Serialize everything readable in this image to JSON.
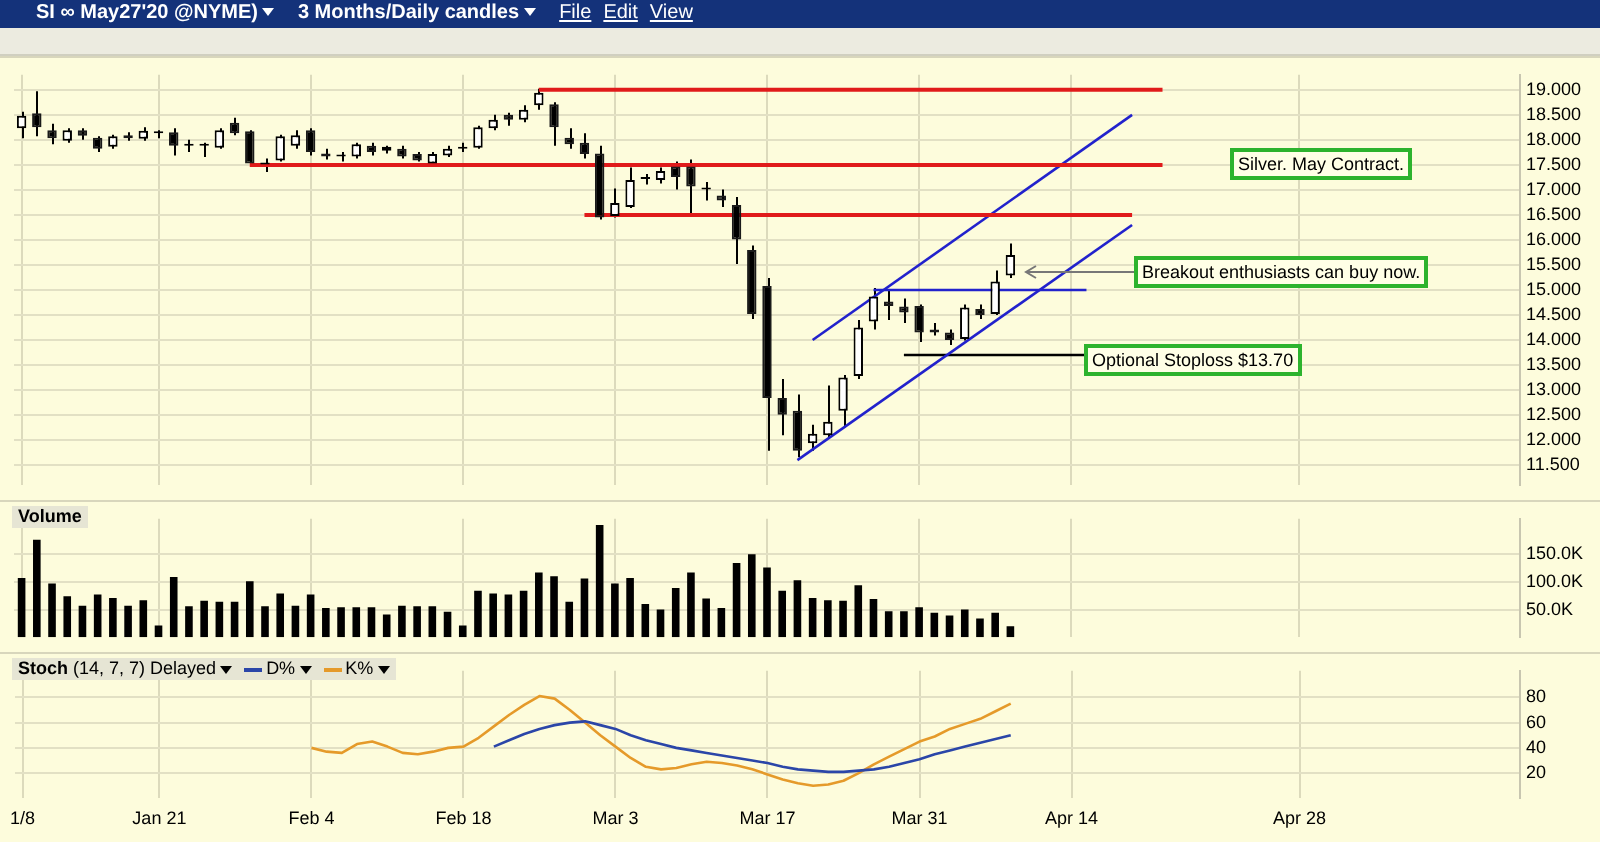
{
  "chart_data": [
    {
      "type": "candlestick",
      "title": "SI ∞ May27'20 @NYME)",
      "subtitle": "3 Months/Daily candles",
      "categories": [
        null,
        null,
        null,
        null,
        null,
        null,
        null,
        null,
        null,
        null,
        null,
        null,
        null,
        null,
        null,
        null,
        null,
        null,
        null,
        null,
        null,
        null,
        null,
        null,
        null,
        null,
        null,
        null,
        null,
        null,
        null,
        null,
        null,
        null,
        null,
        null,
        null,
        null,
        null,
        null,
        null,
        null,
        null,
        null,
        null,
        null,
        null,
        null,
        null,
        null,
        null,
        null,
        null,
        null,
        null,
        null,
        null,
        null,
        null,
        null,
        null,
        null,
        null,
        null,
        null,
        null,
        null,
        null,
        null,
        null,
        null,
        null,
        null,
        null,
        null,
        null,
        null,
        null,
        null,
        null,
        null,
        null,
        null,
        null,
        null,
        null,
        null,
        null,
        null,
        null,
        null,
        null,
        null,
        null,
        null,
        null,
        null,
        null,
        null
      ],
      "ohlc": [
        [
          18.23,
          18.56,
          18.03,
          18.48
        ],
        [
          18.53,
          18.97,
          18.07,
          18.25
        ],
        [
          18.19,
          18.32,
          17.91,
          18.03
        ],
        [
          17.98,
          18.23,
          17.94,
          18.19
        ],
        [
          18.19,
          18.23,
          18.0,
          18.08
        ],
        [
          18.04,
          18.07,
          17.76,
          17.82
        ],
        [
          17.86,
          18.1,
          17.82,
          18.07
        ],
        [
          18.09,
          18.15,
          17.98,
          18.03
        ],
        [
          18.02,
          18.25,
          17.98,
          18.18
        ],
        [
          18.13,
          18.19,
          18.03,
          18.13
        ],
        [
          18.15,
          18.23,
          17.69,
          17.88
        ],
        [
          17.88,
          18.0,
          17.76,
          17.88
        ],
        [
          17.88,
          17.94,
          17.66,
          17.88
        ],
        [
          17.84,
          18.23,
          17.82,
          18.19
        ],
        [
          18.34,
          18.44,
          18.09,
          18.13
        ],
        [
          18.17,
          18.19,
          17.51,
          17.53
        ],
        [
          17.51,
          17.63,
          17.36,
          17.51
        ],
        [
          17.59,
          18.1,
          17.57,
          18.07
        ],
        [
          17.88,
          18.19,
          17.82,
          18.09
        ],
        [
          18.19,
          18.23,
          17.69,
          17.76
        ],
        [
          17.73,
          17.82,
          17.61,
          17.67
        ],
        [
          17.67,
          17.76,
          17.57,
          17.67
        ],
        [
          17.67,
          17.94,
          17.63,
          17.91
        ],
        [
          17.88,
          17.94,
          17.69,
          17.76
        ],
        [
          17.78,
          17.88,
          17.73,
          17.86
        ],
        [
          17.82,
          17.88,
          17.63,
          17.67
        ],
        [
          17.72,
          17.76,
          17.57,
          17.59
        ],
        [
          17.53,
          17.76,
          17.51,
          17.72
        ],
        [
          17.69,
          17.88,
          17.66,
          17.82
        ],
        [
          17.82,
          17.94,
          17.76,
          17.82
        ],
        [
          17.84,
          18.28,
          17.82,
          18.25
        ],
        [
          18.23,
          18.5,
          18.19,
          18.4
        ],
        [
          18.5,
          18.54,
          18.28,
          18.4
        ],
        [
          18.4,
          18.69,
          18.35,
          18.6
        ],
        [
          18.69,
          19.02,
          18.6,
          18.94
        ],
        [
          18.71,
          18.75,
          17.88,
          18.25
        ],
        [
          18.04,
          18.23,
          17.82,
          17.91
        ],
        [
          17.94,
          18.13,
          17.63,
          17.72
        ],
        [
          17.73,
          17.88,
          16.41,
          16.45
        ],
        [
          16.48,
          17.03,
          16.45,
          16.74
        ],
        [
          16.66,
          17.45,
          16.64,
          17.2
        ],
        [
          17.22,
          17.32,
          17.11,
          17.22
        ],
        [
          17.2,
          17.45,
          17.13,
          17.38
        ],
        [
          17.47,
          17.57,
          17.01,
          17.26
        ],
        [
          17.47,
          17.61,
          16.54,
          17.07
        ],
        [
          17.01,
          17.16,
          16.79,
          17.01
        ],
        [
          16.89,
          17.01,
          16.66,
          16.79
        ],
        [
          16.7,
          16.86,
          15.52,
          16.01
        ],
        [
          15.8,
          15.89,
          14.42,
          14.52
        ],
        [
          15.08,
          15.24,
          11.79,
          12.84
        ],
        [
          12.84,
          13.22,
          12.1,
          12.51
        ],
        [
          12.59,
          12.91,
          11.66,
          11.79
        ],
        [
          11.94,
          12.31,
          11.79,
          12.13
        ],
        [
          12.1,
          13.09,
          12.03,
          12.37
        ],
        [
          12.59,
          13.3,
          12.26,
          13.25
        ],
        [
          13.28,
          14.4,
          13.22,
          14.25
        ],
        [
          14.37,
          15.04,
          14.21,
          14.87
        ],
        [
          14.77,
          15.02,
          14.4,
          14.68
        ],
        [
          14.67,
          14.83,
          14.34,
          14.55
        ],
        [
          14.68,
          14.71,
          13.96,
          14.15
        ],
        [
          14.21,
          14.34,
          14.09,
          14.15
        ],
        [
          14.15,
          14.21,
          13.9,
          14.0
        ],
        [
          14.02,
          14.71,
          13.99,
          14.65
        ],
        [
          14.62,
          14.71,
          14.42,
          14.5
        ],
        [
          14.52,
          15.39,
          14.5,
          15.17
        ],
        [
          15.29,
          15.93,
          15.24,
          15.7
        ],
        null,
        null,
        null,
        null,
        null,
        null,
        null,
        null,
        null,
        null,
        null,
        null,
        null,
        null,
        null,
        null,
        null,
        null,
        null,
        null,
        null,
        null,
        null,
        null,
        null,
        null,
        null,
        null,
        null,
        null,
        null,
        null,
        null
      ],
      "series": [
        {
          "type": "line",
          "color": "#e01b1b",
          "values": [
            null,
            null,
            null,
            null,
            null,
            null,
            null,
            null,
            null,
            null,
            null,
            null,
            null,
            null,
            null,
            null,
            null,
            null,
            null,
            null,
            null,
            null,
            null,
            null,
            null,
            null,
            null,
            null,
            null,
            null,
            null,
            null,
            null,
            null,
            19,
            null,
            null,
            null,
            null,
            null,
            null,
            null,
            null,
            null,
            null,
            null,
            null,
            null,
            null,
            null,
            null,
            null,
            null,
            null,
            null,
            null,
            null,
            null,
            null,
            null,
            null,
            null,
            null,
            null,
            null,
            null,
            null,
            null,
            null,
            null,
            null,
            null,
            null,
            null,
            null,
            19,
            null,
            null,
            null,
            null,
            null,
            null,
            null,
            null,
            null,
            null,
            null,
            null,
            null,
            null,
            null,
            null,
            null,
            null,
            null,
            null,
            null,
            null,
            null
          ]
        },
        {
          "type": "line",
          "color": "#e01b1b",
          "values": [
            null,
            null,
            null,
            null,
            null,
            null,
            null,
            null,
            null,
            null,
            null,
            null,
            null,
            null,
            null,
            17.5,
            null,
            null,
            null,
            null,
            null,
            null,
            null,
            null,
            null,
            null,
            null,
            null,
            null,
            null,
            null,
            null,
            null,
            null,
            null,
            null,
            null,
            null,
            null,
            null,
            null,
            null,
            null,
            null,
            null,
            null,
            null,
            null,
            null,
            null,
            null,
            null,
            null,
            null,
            null,
            null,
            null,
            null,
            null,
            null,
            null,
            null,
            null,
            null,
            null,
            null,
            null,
            null,
            null,
            null,
            null,
            null,
            null,
            null,
            null,
            17.5,
            null,
            null,
            null,
            null,
            null,
            null,
            null,
            null,
            null,
            null,
            null,
            null,
            null,
            null,
            null,
            null,
            null,
            null,
            null,
            null,
            null,
            null,
            null
          ]
        },
        {
          "type": "line",
          "color": "#e01b1b",
          "values": [
            null,
            null,
            null,
            null,
            null,
            null,
            null,
            null,
            null,
            null,
            null,
            null,
            null,
            null,
            null,
            null,
            null,
            null,
            null,
            null,
            null,
            null,
            null,
            null,
            null,
            null,
            null,
            null,
            null,
            null,
            null,
            null,
            null,
            null,
            null,
            null,
            null,
            16.5,
            null,
            null,
            null,
            null,
            null,
            null,
            null,
            null,
            null,
            null,
            null,
            null,
            null,
            null,
            null,
            null,
            null,
            null,
            null,
            null,
            null,
            null,
            null,
            null,
            null,
            null,
            null,
            null,
            null,
            null,
            null,
            null,
            null,
            null,
            null,
            16.5,
            null,
            null,
            null,
            null,
            null,
            null,
            null,
            null,
            null,
            null,
            null,
            null,
            null,
            null,
            null,
            null,
            null,
            null,
            null,
            null,
            null,
            null,
            null,
            null,
            null
          ]
        },
        {
          "type": "line",
          "color": "#2222cc",
          "values": [
            null,
            null,
            null,
            null,
            null,
            null,
            null,
            null,
            null,
            null,
            null,
            null,
            null,
            null,
            null,
            null,
            null,
            null,
            null,
            null,
            null,
            null,
            null,
            null,
            null,
            null,
            null,
            null,
            null,
            null,
            null,
            null,
            null,
            null,
            null,
            null,
            null,
            null,
            null,
            null,
            null,
            null,
            null,
            null,
            null,
            null,
            null,
            null,
            null,
            null,
            null,
            null,
            14,
            null,
            null,
            null,
            null,
            null,
            null,
            null,
            null,
            null,
            null,
            null,
            null,
            null,
            null,
            null,
            null,
            null,
            null,
            null,
            null,
            18.5,
            null,
            null,
            null,
            null,
            null,
            null,
            null,
            null,
            null,
            null,
            null,
            null,
            null,
            null,
            null,
            null,
            null,
            null,
            null,
            null,
            null,
            null,
            null,
            null,
            null
          ]
        },
        {
          "type": "line",
          "color": "#2222cc",
          "values": [
            null,
            null,
            null,
            null,
            null,
            null,
            null,
            null,
            null,
            null,
            null,
            null,
            null,
            null,
            null,
            null,
            null,
            null,
            null,
            null,
            null,
            null,
            null,
            null,
            null,
            null,
            null,
            null,
            null,
            null,
            null,
            null,
            null,
            null,
            null,
            null,
            null,
            null,
            null,
            null,
            null,
            null,
            null,
            null,
            null,
            null,
            null,
            null,
            null,
            null,
            null,
            11.6,
            null,
            null,
            null,
            null,
            null,
            null,
            null,
            null,
            null,
            null,
            null,
            null,
            null,
            null,
            null,
            null,
            null,
            null,
            null,
            null,
            null,
            16.3,
            null,
            null,
            null,
            null,
            null,
            null,
            null,
            null,
            null,
            null,
            null,
            null,
            null,
            null,
            null,
            null,
            null,
            null,
            null,
            null,
            null,
            null,
            null,
            null,
            null
          ]
        },
        {
          "type": "line",
          "color": "#2222cc",
          "values": [
            null,
            null,
            null,
            null,
            null,
            null,
            null,
            null,
            null,
            null,
            null,
            null,
            null,
            null,
            null,
            null,
            null,
            null,
            null,
            null,
            null,
            null,
            null,
            null,
            null,
            null,
            null,
            null,
            null,
            null,
            null,
            null,
            null,
            null,
            null,
            null,
            null,
            null,
            null,
            null,
            null,
            null,
            null,
            null,
            null,
            null,
            null,
            null,
            null,
            null,
            null,
            null,
            null,
            null,
            null,
            null,
            15,
            null,
            null,
            null,
            null,
            null,
            null,
            null,
            null,
            null,
            null,
            null,
            null,
            null,
            15,
            null,
            null,
            null,
            null,
            null,
            null,
            null,
            null,
            null,
            null,
            null,
            null,
            null,
            null,
            null,
            null,
            null,
            null,
            null,
            null,
            null,
            null,
            null,
            null,
            null,
            null,
            null,
            null
          ]
        },
        {
          "type": "line",
          "color": "#000000",
          "values": [
            null,
            null,
            null,
            null,
            null,
            null,
            null,
            null,
            null,
            null,
            null,
            null,
            null,
            null,
            null,
            null,
            null,
            null,
            null,
            null,
            null,
            null,
            null,
            null,
            null,
            null,
            null,
            null,
            null,
            null,
            null,
            null,
            null,
            null,
            null,
            null,
            null,
            null,
            null,
            null,
            null,
            null,
            null,
            null,
            null,
            null,
            null,
            null,
            null,
            null,
            null,
            null,
            null,
            null,
            null,
            null,
            null,
            null,
            13.7,
            null,
            null,
            null,
            null,
            null,
            null,
            null,
            null,
            null,
            null,
            null,
            13.7,
            null,
            null,
            null,
            null,
            null,
            null,
            null,
            null,
            null,
            null,
            null,
            null,
            null,
            null,
            null,
            null,
            null,
            null,
            null,
            null,
            null,
            null,
            null,
            null,
            null,
            null,
            null,
            null
          ]
        }
      ],
      "ylim": [
        11.1,
        19.3
      ],
      "yticks": [
        {
          "value": 11.5,
          "label": "11.500"
        },
        {
          "value": 12,
          "label": "12.000"
        },
        {
          "value": 12.5,
          "label": "12.500"
        },
        {
          "value": 13,
          "label": "13.000"
        },
        {
          "value": 13.5,
          "label": "13.500"
        },
        {
          "value": 14,
          "label": "14.000"
        },
        {
          "value": 14.5,
          "label": "14.500"
        },
        {
          "value": 15,
          "label": "15.000"
        },
        {
          "value": 15.5,
          "label": "15.500"
        },
        {
          "value": 16,
          "label": "16.000"
        },
        {
          "value": 16.5,
          "label": "16.500"
        },
        {
          "value": 17,
          "label": "17.000"
        },
        {
          "value": 17.5,
          "label": "17.500"
        },
        {
          "value": 18,
          "label": "18.000"
        },
        {
          "value": 18.5,
          "label": "18.500"
        },
        {
          "value": 19,
          "label": "19.000"
        }
      ],
      "grid": true,
      "tick_labels": "y",
      "annotations": [
        "File",
        "Edit",
        "View",
        "Silver. May Contract.",
        "Breakout enthusiasts can buy now.",
        "Optional Stoploss $13.70"
      ]
    },
    {
      "type": "bar",
      "title": "Volume",
      "categories": [
        null,
        null,
        null,
        null,
        null,
        null,
        null,
        null,
        null,
        null,
        null,
        null,
        null,
        null,
        null,
        null,
        null,
        null,
        null,
        null,
        null,
        null,
        null,
        null,
        null,
        null,
        null,
        null,
        null,
        null,
        null,
        null,
        null,
        null,
        null,
        null,
        null,
        null,
        null,
        null,
        null,
        null,
        null,
        null,
        null,
        null,
        null,
        null,
        null,
        null,
        null,
        null,
        null,
        null,
        null,
        null,
        null,
        null,
        null,
        null,
        null,
        null,
        null,
        null,
        null,
        null,
        null,
        null,
        null,
        null,
        null,
        null,
        null,
        null,
        null,
        null,
        null,
        null,
        null,
        null,
        null,
        null,
        null,
        null,
        null,
        null,
        null,
        null,
        null,
        null,
        null,
        null,
        null,
        null,
        null,
        null,
        null,
        null,
        null
      ],
      "values": [
        107000,
        176000,
        97000,
        74000,
        57000,
        77000,
        71000,
        57000,
        67000,
        21000,
        109000,
        56000,
        66000,
        64000,
        64000,
        101000,
        56000,
        79000,
        57000,
        77000,
        53000,
        54000,
        54000,
        54000,
        41000,
        57000,
        56000,
        56000,
        46000,
        21000,
        84000,
        79000,
        77000,
        84000,
        117000,
        110000,
        64000,
        106000,
        203000,
        97000,
        107000,
        60000,
        50000,
        89000,
        117000,
        70000,
        53000,
        134000,
        150000,
        126000,
        84000,
        103000,
        71000,
        67000,
        66000,
        94000,
        69000,
        47000,
        47000,
        54000,
        44000,
        39000,
        50000,
        34000,
        44000,
        20000,
        null,
        null,
        null,
        null,
        null,
        null,
        null,
        null,
        null,
        null,
        null,
        null,
        null,
        null,
        null,
        null,
        null,
        null,
        null,
        null,
        null,
        null,
        null,
        null,
        null,
        null,
        null,
        null,
        null,
        null,
        null,
        null,
        null
      ],
      "color": "#000000",
      "ylim": [
        0,
        214000
      ],
      "yticks": [
        {
          "value": 50000,
          "label": "50.0K"
        },
        {
          "value": 100000,
          "label": "100.0K"
        },
        {
          "value": 150000,
          "label": "150.0K"
        }
      ],
      "grid": true,
      "tick_labels": "y"
    },
    {
      "type": "line",
      "title": "Stoch",
      "subtitle": "(14, 7, 7) Delayed",
      "categories": [
        "1/8",
        null,
        null,
        null,
        null,
        null,
        null,
        null,
        null,
        "Jan 21",
        null,
        null,
        null,
        null,
        null,
        null,
        null,
        null,
        null,
        "Feb 4",
        null,
        null,
        null,
        null,
        null,
        null,
        null,
        null,
        null,
        "Feb 18",
        null,
        null,
        null,
        null,
        null,
        null,
        null,
        null,
        null,
        "Mar 3",
        null,
        null,
        null,
        null,
        null,
        null,
        null,
        null,
        null,
        "Mar 17",
        null,
        null,
        null,
        null,
        null,
        null,
        null,
        null,
        null,
        "Mar 31",
        null,
        null,
        null,
        null,
        null,
        null,
        null,
        null,
        null,
        "Apr 14",
        null,
        null,
        null,
        null,
        null,
        null,
        null,
        null,
        null,
        null,
        null,
        null,
        null,
        null,
        "Apr 28",
        null,
        null,
        null,
        null,
        null,
        null,
        null,
        null,
        null,
        null,
        null,
        null,
        null,
        null
      ],
      "series": [
        {
          "name": "D%",
          "color": "#2b46a8",
          "values": [
            null,
            null,
            null,
            null,
            null,
            null,
            null,
            null,
            null,
            null,
            null,
            null,
            null,
            null,
            null,
            null,
            null,
            null,
            null,
            null,
            null,
            null,
            null,
            null,
            null,
            null,
            null,
            null,
            null,
            null,
            null,
            41,
            46,
            51,
            55,
            58,
            60,
            61,
            58,
            55,
            50,
            46,
            43,
            40,
            38,
            36,
            34,
            32,
            30,
            28,
            25,
            23,
            22,
            21,
            21,
            22,
            23,
            25,
            28,
            31,
            35,
            38,
            41,
            44,
            47,
            50,
            null,
            null,
            null,
            null,
            null,
            null,
            null,
            null,
            null,
            null,
            null,
            null,
            null,
            null,
            null,
            null,
            null,
            null,
            null,
            null,
            null,
            null,
            null,
            null,
            null,
            null,
            null,
            null,
            null,
            null,
            null,
            null,
            null
          ]
        },
        {
          "name": "K%",
          "color": "#e59a2a",
          "values": [
            null,
            null,
            null,
            null,
            null,
            null,
            null,
            null,
            null,
            null,
            null,
            null,
            null,
            null,
            null,
            null,
            null,
            null,
            null,
            40,
            37,
            36,
            43,
            45,
            41,
            36,
            35,
            37,
            40,
            41,
            48,
            57,
            66,
            74,
            81,
            79,
            70,
            60,
            50,
            41,
            32,
            25,
            23,
            24,
            27,
            29,
            28,
            26,
            23,
            19,
            15,
            12,
            10,
            11,
            14,
            20,
            27,
            33,
            39,
            45,
            49,
            55,
            59,
            63,
            69,
            75,
            null,
            null,
            null,
            null,
            null,
            null,
            null,
            null,
            null,
            null,
            null,
            null,
            null,
            null,
            null,
            null,
            null,
            null,
            null,
            null,
            null,
            null,
            null,
            null,
            null,
            null,
            null,
            null,
            null,
            null,
            null,
            null,
            null
          ]
        }
      ],
      "ylim": [
        0,
        101
      ],
      "yticks": [
        20,
        40,
        60,
        80
      ],
      "grid": true,
      "legend": "top left"
    }
  ]
}
